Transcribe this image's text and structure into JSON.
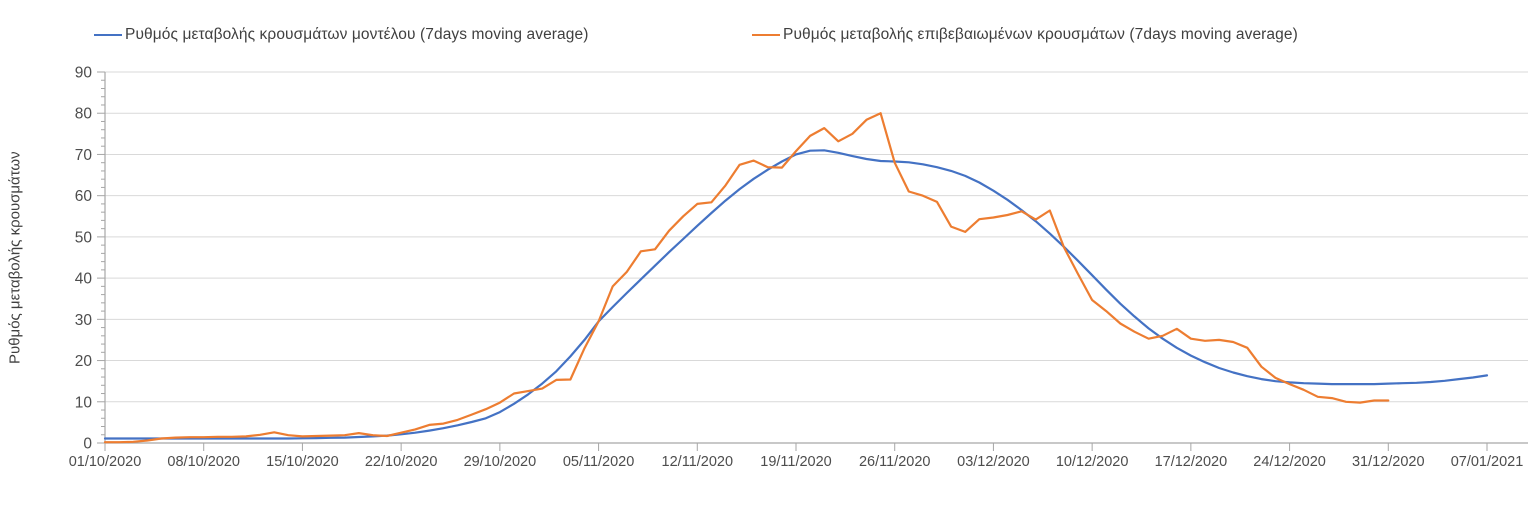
{
  "chart_data": {
    "type": "line",
    "title": "",
    "xlabel": "",
    "ylabel": "Ρυθμός μεταβολής κρουσμάτων",
    "ylim": [
      0,
      90
    ],
    "y_tick_step": 10,
    "y_minor_tick_step": 2,
    "grid": "horizontal",
    "legend_position": "top",
    "x_start_date": "01/10/2020",
    "x_unit": "day",
    "x_tick_interval_days": 7,
    "x_tick_labels": [
      "01/10/2020",
      "08/10/2020",
      "15/10/2020",
      "22/10/2020",
      "29/10/2020",
      "05/11/2020",
      "12/11/2020",
      "19/11/2020",
      "26/11/2020",
      "03/12/2020",
      "10/12/2020",
      "17/12/2020",
      "24/12/2020",
      "31/12/2020",
      "07/01/2021"
    ],
    "colors": {
      "grid": "#d9d9d9",
      "axis": "#a6a6a6",
      "text": "#4d4d4d",
      "legend_text": "#404040",
      "series_model": "#4472c4",
      "series_confirmed": "#ed7d31"
    },
    "series": [
      {
        "name": "Ρυθμός μεταβολής κρουσμάτων μοντέλου (7days moving average)",
        "color": "#4472c4",
        "start_date": "01/10/2020",
        "end_date": "07/01/2021",
        "values": [
          1.1,
          1.1,
          1.1,
          1.1,
          1.1,
          1.1,
          1.1,
          1.1,
          1.1,
          1.1,
          1.1,
          1.1,
          1.1,
          1.1,
          1.15,
          1.2,
          1.25,
          1.3,
          1.45,
          1.6,
          1.8,
          2.1,
          2.5,
          3.0,
          3.6,
          4.3,
          5.1,
          6.0,
          7.5,
          9.5,
          11.8,
          14.4,
          17.4,
          21.0,
          25.0,
          29.5,
          33.0,
          36.4,
          39.7,
          43.0,
          46.3,
          49.5,
          52.7,
          55.8,
          58.8,
          61.6,
          64.1,
          66.3,
          68.3,
          70.0,
          70.9,
          71.0,
          70.4,
          69.6,
          68.9,
          68.4,
          68.3,
          68.1,
          67.6,
          66.9,
          66.0,
          64.8,
          63.2,
          61.2,
          59.0,
          56.5,
          53.8,
          50.8,
          47.6,
          44.2,
          40.7,
          37.2,
          33.8,
          30.7,
          27.8,
          25.3,
          23.1,
          21.2,
          19.6,
          18.2,
          17.1,
          16.2,
          15.5,
          15.0,
          14.7,
          14.5,
          14.4,
          14.3,
          14.3,
          14.3,
          14.3,
          14.4,
          14.5,
          14.6,
          14.8,
          15.1,
          15.5,
          15.9,
          16.4
        ]
      },
      {
        "name": "Ρυθμός μεταβολής επιβεβαιωμένων κρουσμάτων (7days moving average)",
        "color": "#ed7d31",
        "start_date": "01/10/2020",
        "end_date": "31/12/2020",
        "values": [
          0.2,
          0.2,
          0.3,
          0.6,
          1.1,
          1.3,
          1.4,
          1.4,
          1.5,
          1.5,
          1.6,
          2.0,
          2.6,
          1.9,
          1.6,
          1.7,
          1.8,
          1.9,
          2.4,
          1.9,
          1.7,
          2.5,
          3.3,
          4.4,
          4.7,
          5.6,
          6.9,
          8.2,
          9.8,
          12.0,
          12.6,
          13.2,
          15.3,
          15.4,
          23.0,
          29.5,
          38.0,
          41.5,
          46.5,
          47.0,
          51.5,
          55.0,
          58.0,
          58.4,
          62.5,
          67.5,
          68.5,
          66.9,
          66.8,
          70.8,
          74.5,
          76.4,
          73.2,
          75.0,
          78.4,
          80.0,
          68.0,
          61.0,
          60.0,
          58.5,
          52.5,
          51.2,
          54.3,
          54.7,
          55.3,
          56.2,
          54.2,
          56.4,
          47.5,
          41.0,
          34.7,
          32.0,
          29.0,
          27.0,
          25.3,
          26.0,
          27.7,
          25.3,
          24.8,
          25.0,
          24.5,
          23.1,
          18.5,
          15.8,
          14.3,
          12.9,
          11.2,
          10.9,
          10.0,
          9.8,
          10.3,
          10.3
        ]
      }
    ]
  },
  "legend": {
    "items": [
      {
        "label": "Ρυθμός μεταβολής κρουσμάτων μοντέλου (7days moving average)"
      },
      {
        "label": "Ρυθμός μεταβολής επιβεβαιωμένων κρουσμάτων (7days moving average)"
      }
    ]
  },
  "axes": {
    "y_tick_labels": [
      "0",
      "10",
      "20",
      "30",
      "40",
      "50",
      "60",
      "70",
      "80",
      "90"
    ]
  }
}
